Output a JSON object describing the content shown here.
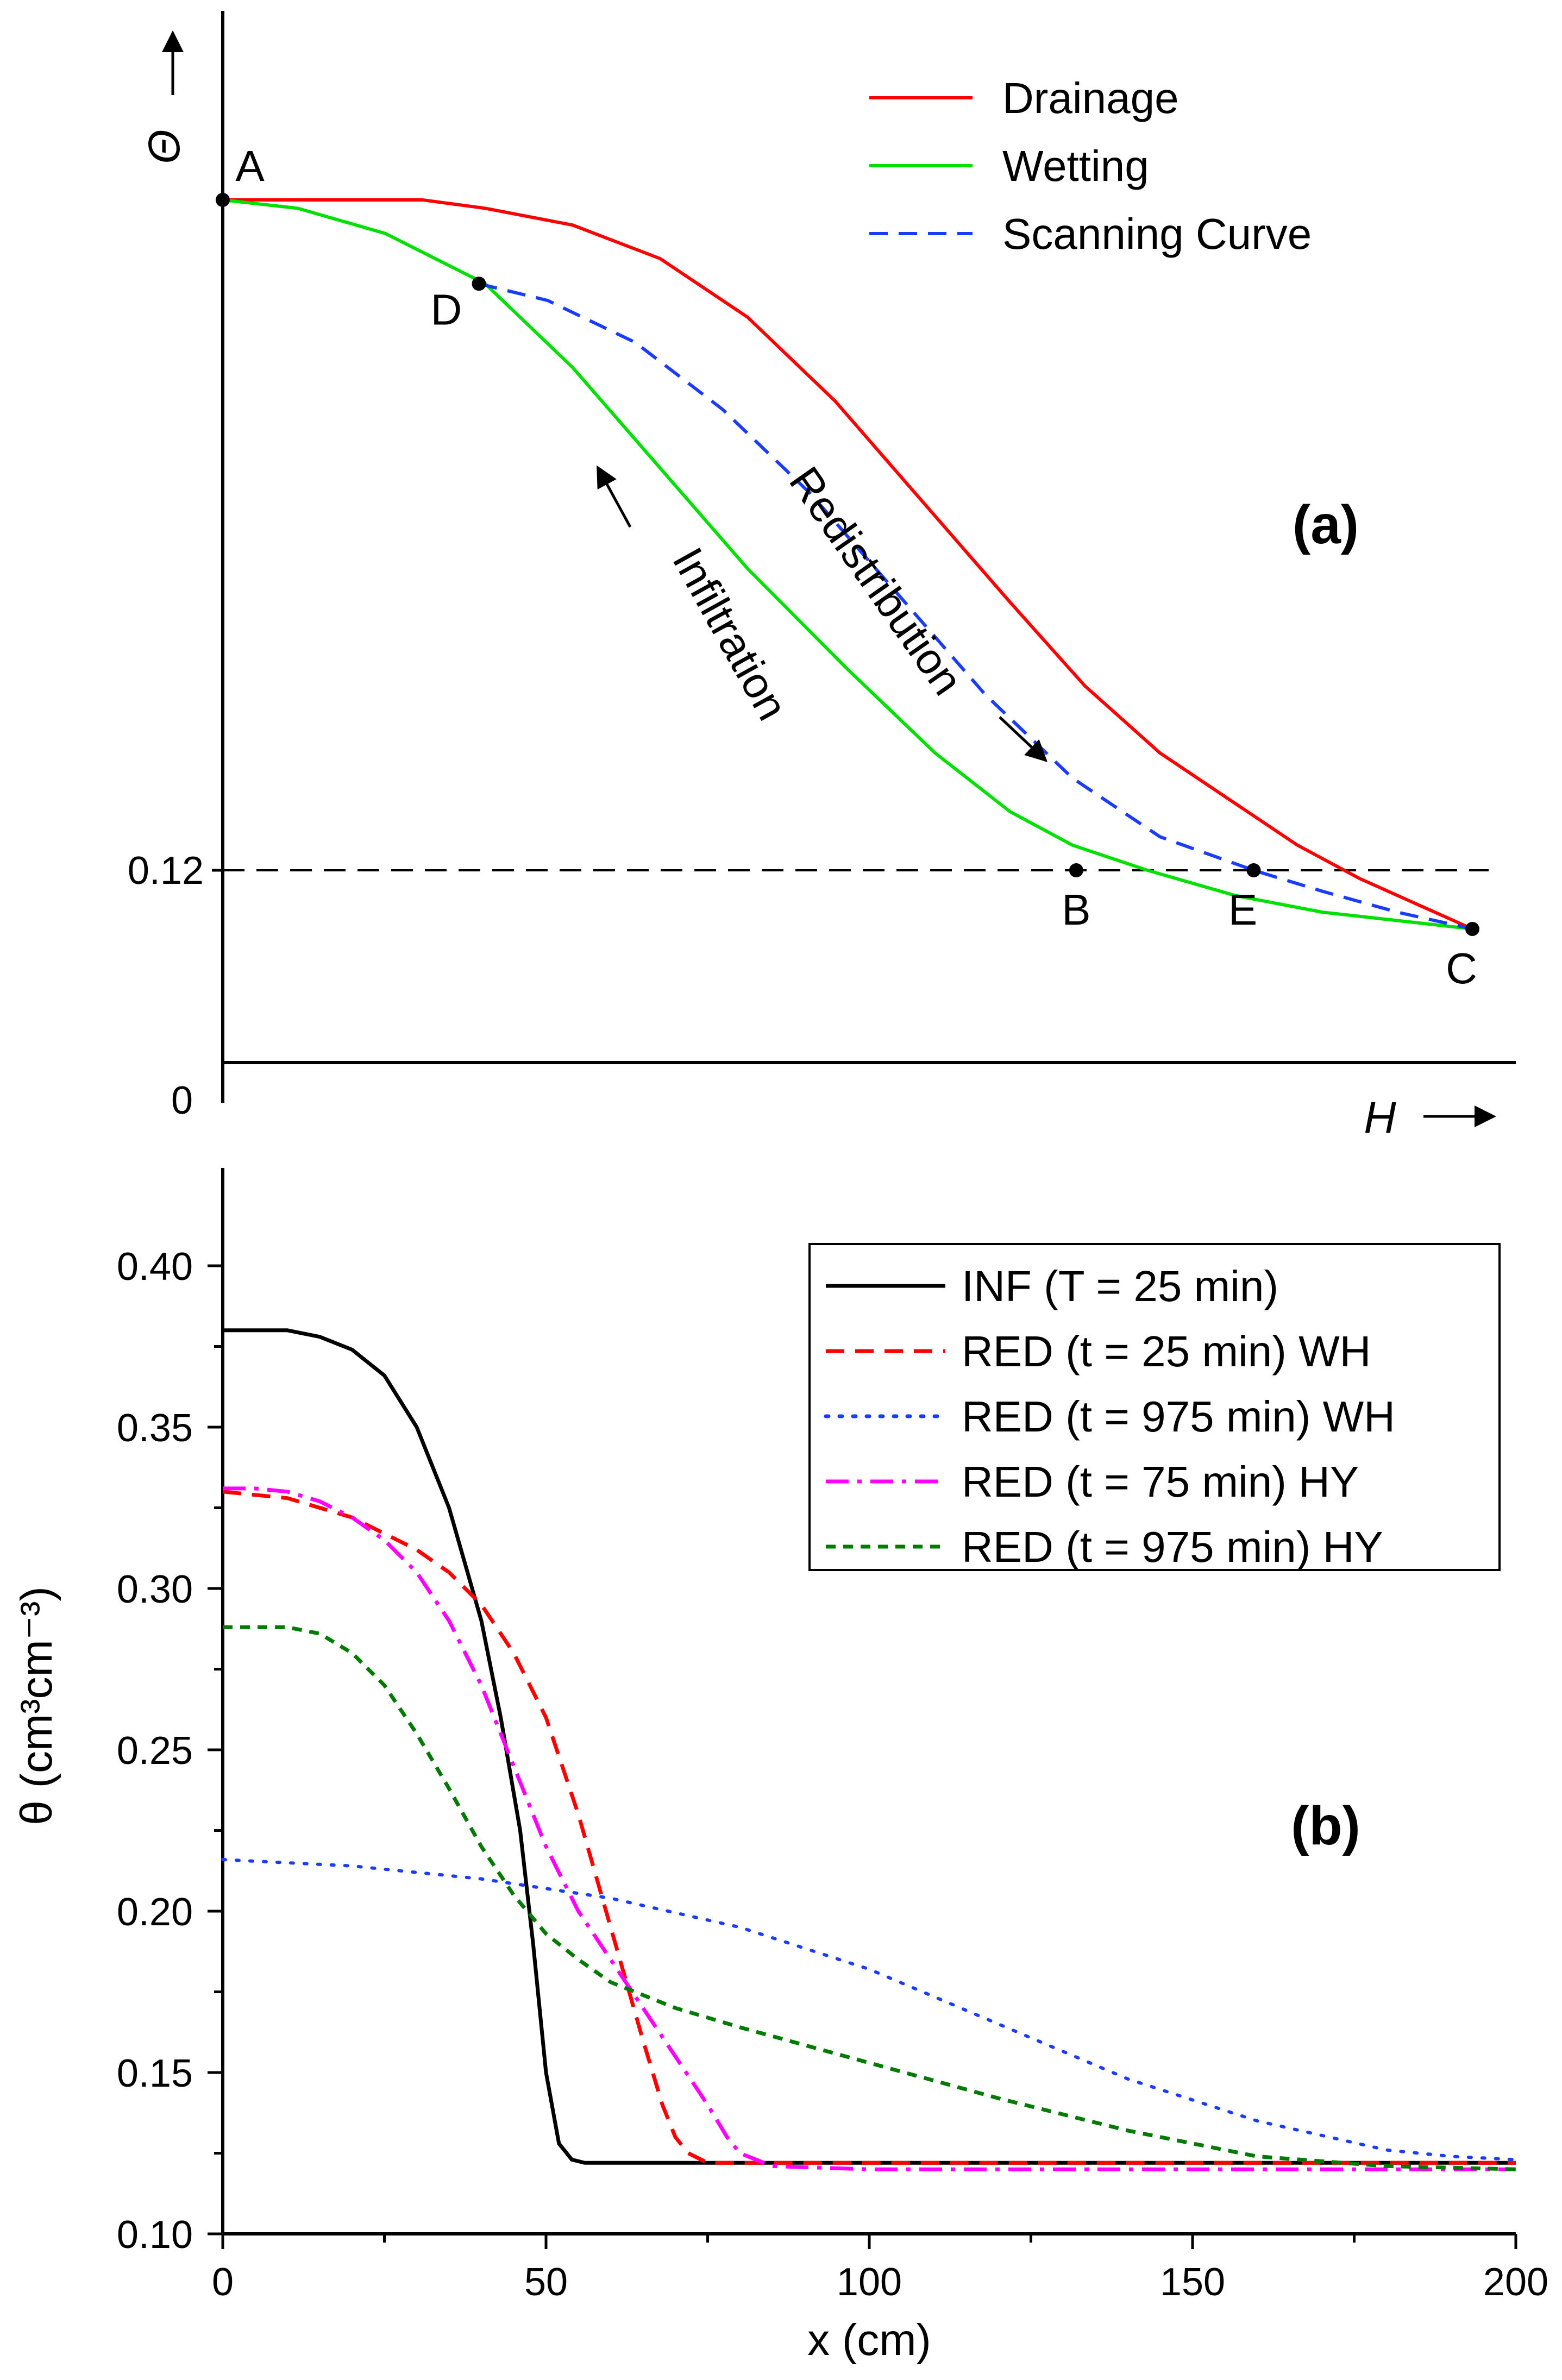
{
  "chart_data": [
    {
      "type": "line",
      "panel_label": "(a)",
      "xlabel": "H",
      "ylabel": "Θ",
      "origin_label": "0",
      "ytick_labels": [
        "0.12"
      ],
      "reference_line": {
        "label": "0.12",
        "style": "dashed",
        "color": "#000000"
      },
      "series": [
        {
          "name": "Drainage",
          "color": "#ff0000",
          "style": "solid",
          "points": [
            [
              0,
              0.8
            ],
            [
              0.1,
              0.8
            ],
            [
              0.16,
              0.8
            ],
            [
              0.21,
              0.79
            ],
            [
              0.28,
              0.77
            ],
            [
              0.35,
              0.73
            ],
            [
              0.42,
              0.66
            ],
            [
              0.49,
              0.56
            ],
            [
              0.56,
              0.44
            ],
            [
              0.63,
              0.32
            ],
            [
              0.69,
              0.22
            ],
            [
              0.75,
              0.14
            ],
            [
              0.81,
              0.08
            ],
            [
              0.86,
              0.03
            ],
            [
              0.91,
              -0.01
            ],
            [
              0.955,
              -0.04
            ],
            [
              1.0,
              -0.07
            ]
          ]
        },
        {
          "name": "Wetting",
          "color": "#00e000",
          "style": "solid",
          "points": [
            [
              0,
              0.8
            ],
            [
              0.06,
              0.79
            ],
            [
              0.13,
              0.76
            ],
            [
              0.21,
              0.7
            ],
            [
              0.28,
              0.6
            ],
            [
              0.35,
              0.48
            ],
            [
              0.42,
              0.36
            ],
            [
              0.5,
              0.24
            ],
            [
              0.57,
              0.14
            ],
            [
              0.63,
              0.07
            ],
            [
              0.68,
              0.03
            ],
            [
              0.74,
              0.0
            ],
            [
              0.81,
              -0.03
            ],
            [
              0.88,
              -0.05
            ],
            [
              0.94,
              -0.06
            ],
            [
              1.0,
              -0.07
            ]
          ]
        },
        {
          "name": "Scanning Curve",
          "color": "#1a3cff",
          "style": "dashed",
          "points": [
            [
              0.205,
              0.7
            ],
            [
              0.26,
              0.68
            ],
            [
              0.33,
              0.63
            ],
            [
              0.4,
              0.55
            ],
            [
              0.47,
              0.45
            ],
            [
              0.54,
              0.33
            ],
            [
              0.61,
              0.21
            ],
            [
              0.68,
              0.11
            ],
            [
              0.75,
              0.04
            ],
            [
              0.825,
              0.0
            ],
            [
              0.88,
              -0.025
            ],
            [
              0.94,
              -0.05
            ],
            [
              1.0,
              -0.07
            ]
          ]
        }
      ],
      "points": [
        {
          "label": "A",
          "x": 0.0,
          "y": 0.8
        },
        {
          "label": "D",
          "x": 0.205,
          "y": 0.7
        },
        {
          "label": "B",
          "x": 0.683,
          "y": 0.0
        },
        {
          "label": "E",
          "x": 0.825,
          "y": 0.0
        },
        {
          "label": "C",
          "x": 1.0,
          "y": -0.07
        }
      ],
      "annotations": [
        "Infiltration",
        "Redistribution"
      ],
      "legend": "top-right",
      "grid": false
    },
    {
      "type": "line",
      "panel_label": "(b)",
      "xlabel": "x (cm)",
      "ylabel": "θ (cm³cm⁻³)",
      "xlim": [
        0,
        200
      ],
      "ylim": [
        0.1,
        0.42
      ],
      "xticks": [
        0,
        50,
        100,
        150,
        200
      ],
      "xtick_labels": [
        "0",
        "50",
        "100",
        "150",
        "200"
      ],
      "yticks": [
        0.1,
        0.15,
        0.2,
        0.25,
        0.3,
        0.35,
        0.4
      ],
      "ytick_labels": [
        "0.10",
        "0.15",
        "0.20",
        "0.25",
        "0.30",
        "0.35",
        "0.40"
      ],
      "legend": "top-right",
      "grid": false,
      "series": [
        {
          "name": "INF (T = 25 min)",
          "color": "#000000",
          "style": "solid",
          "x": [
            0,
            10,
            15,
            20,
            25,
            30,
            35,
            40,
            43,
            46,
            48,
            50,
            52,
            54,
            56,
            60,
            80,
            100,
            150,
            200
          ],
          "y": [
            0.38,
            0.38,
            0.378,
            0.374,
            0.366,
            0.35,
            0.325,
            0.29,
            0.26,
            0.225,
            0.19,
            0.15,
            0.128,
            0.123,
            0.122,
            0.122,
            0.122,
            0.122,
            0.122,
            0.122
          ]
        },
        {
          "name": "RED (t = 25 min) WH",
          "color": "#ff0000",
          "style": "dashed",
          "x": [
            0,
            10,
            20,
            30,
            35,
            40,
            45,
            50,
            55,
            60,
            65,
            68,
            70,
            72,
            75,
            80,
            100,
            150,
            200
          ],
          "y": [
            0.33,
            0.328,
            0.322,
            0.312,
            0.305,
            0.295,
            0.28,
            0.26,
            0.23,
            0.195,
            0.16,
            0.14,
            0.13,
            0.125,
            0.122,
            0.122,
            0.122,
            0.122,
            0.122
          ]
        },
        {
          "name": "RED (t = 975 min) WH",
          "color": "#1a3cff",
          "style": "dotted",
          "x": [
            0,
            20,
            40,
            60,
            80,
            100,
            120,
            140,
            160,
            180,
            190,
            200
          ],
          "y": [
            0.216,
            0.214,
            0.21,
            0.204,
            0.195,
            0.182,
            0.165,
            0.148,
            0.135,
            0.126,
            0.124,
            0.123
          ]
        },
        {
          "name": "RED (t = 75 min) HY",
          "color": "#ff00ff",
          "style": "dashdot",
          "x": [
            0,
            5,
            10,
            15,
            20,
            25,
            30,
            35,
            40,
            45,
            50,
            55,
            60,
            65,
            70,
            75,
            78,
            80,
            85,
            100,
            150,
            200
          ],
          "y": [
            0.331,
            0.331,
            0.33,
            0.327,
            0.322,
            0.315,
            0.305,
            0.29,
            0.27,
            0.245,
            0.22,
            0.2,
            0.185,
            0.17,
            0.155,
            0.14,
            0.13,
            0.125,
            0.121,
            0.12,
            0.12,
            0.12
          ]
        },
        {
          "name": "RED (t = 975 min) HY",
          "color": "#007a00",
          "style": "shortdash",
          "x": [
            0,
            10,
            15,
            20,
            25,
            30,
            35,
            40,
            45,
            50,
            55,
            60,
            70,
            80,
            100,
            120,
            140,
            160,
            180,
            200
          ],
          "y": [
            0.288,
            0.288,
            0.286,
            0.28,
            0.27,
            0.255,
            0.238,
            0.22,
            0.205,
            0.193,
            0.185,
            0.178,
            0.17,
            0.164,
            0.153,
            0.142,
            0.132,
            0.124,
            0.121,
            0.12
          ]
        }
      ]
    }
  ]
}
